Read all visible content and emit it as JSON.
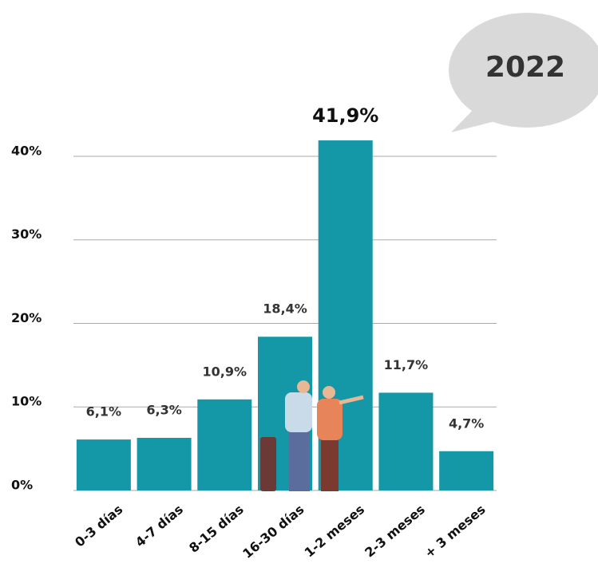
{
  "chart_data": {
    "type": "bar",
    "annotation": "2022",
    "categories": [
      "0-3 días",
      "4-7 días",
      "8-15 días",
      "16-30 días",
      "1-2 meses",
      "2-3 meses",
      "+ 3 meses"
    ],
    "values": [
      6.1,
      6.3,
      10.9,
      18.4,
      41.9,
      11.7,
      4.7
    ],
    "value_labels": [
      "6,1%",
      "6,3%",
      "10,9%",
      "18,4%",
      "41,9%",
      "11,7%",
      "4,7%"
    ],
    "color": "#1497a6",
    "ylim": [
      0,
      42
    ],
    "yticks": [
      {
        "value": 0,
        "label": "0%"
      },
      {
        "value": 10,
        "label": "10%"
      },
      {
        "value": 20,
        "label": "20%"
      },
      {
        "value": 30,
        "label": "30%"
      },
      {
        "value": 40,
        "label": "40%"
      }
    ],
    "grid": true
  }
}
